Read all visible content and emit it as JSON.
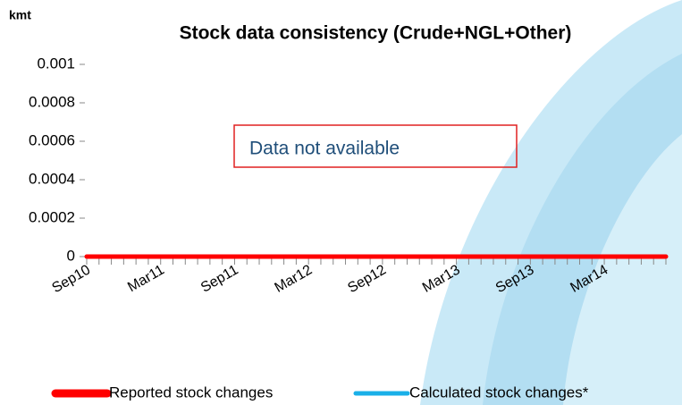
{
  "chart_data": {
    "type": "line",
    "title": "Stock data consistency (Crude+NGL+Other)",
    "unit": "kmt",
    "annotation": "Data not available",
    "categories": [
      "Sep10",
      null,
      null,
      null,
      null,
      null,
      "Mar11",
      null,
      null,
      null,
      null,
      null,
      "Sep11",
      null,
      null,
      null,
      null,
      null,
      "Mar12",
      null,
      null,
      null,
      null,
      null,
      "Sep12",
      null,
      null,
      null,
      null,
      null,
      "Mar13",
      null,
      null,
      null,
      null,
      null,
      "Sep13",
      null,
      null,
      null,
      null,
      null,
      "Mar14",
      null,
      null,
      null,
      null,
      null
    ],
    "series": [
      {
        "name": "Reported stock changes",
        "color": "#ff0000",
        "values": [
          0,
          0,
          0,
          0,
          0,
          0,
          0,
          0,
          0,
          0,
          0,
          0,
          0,
          0,
          0,
          0,
          0,
          0,
          0,
          0,
          0,
          0,
          0,
          0,
          0,
          0,
          0,
          0,
          0,
          0,
          0,
          0,
          0,
          0,
          0,
          0,
          0,
          0,
          0,
          0,
          0,
          0,
          0,
          0,
          0,
          0,
          0,
          0
        ]
      },
      {
        "name": "Calculated stock changes*",
        "color": "#1ab0e8",
        "values": [
          0,
          0,
          0,
          0,
          0,
          0,
          0,
          0,
          0,
          0,
          0,
          0,
          0,
          0,
          0,
          0,
          0,
          0,
          0,
          0,
          0,
          0,
          0,
          0,
          0,
          0,
          0,
          0,
          0,
          0,
          0,
          0,
          0,
          0,
          0,
          0,
          0,
          0,
          0,
          0,
          0,
          0,
          0,
          0,
          0,
          0,
          0,
          0
        ]
      }
    ],
    "ylim": [
      0,
      0.001
    ],
    "yticks": [
      0,
      0.0002,
      0.0004,
      0.0006,
      0.0008,
      0.001
    ]
  }
}
